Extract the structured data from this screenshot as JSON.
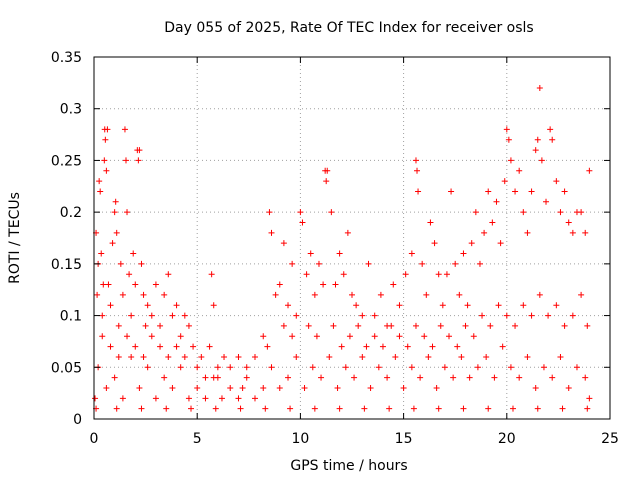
{
  "chart_data": {
    "type": "scatter",
    "title": "Day 055 of 2025, Rate Of TEC Index for receiver osls",
    "xlabel": "GPS time / hours",
    "ylabel": "ROTI / TECUs",
    "xlim": [
      0,
      25
    ],
    "ylim": [
      0,
      0.35
    ],
    "xticks": [
      0,
      5,
      10,
      15,
      20,
      25
    ],
    "yticks": [
      0,
      0.05,
      0.1,
      0.15,
      0.2,
      0.25,
      0.3,
      0.35
    ],
    "xtick_labels": [
      "0",
      "5",
      "10",
      "15",
      "20",
      "25"
    ],
    "ytick_labels": [
      "0",
      "0.05",
      "0.1",
      "0.15",
      "0.2",
      "0.25",
      "0.3",
      "0.35"
    ],
    "grid": true,
    "marker": "plus",
    "color": "#ff0000",
    "points": [
      [
        0.05,
        0.02
      ],
      [
        0.1,
        0.18
      ],
      [
        0.15,
        0.12
      ],
      [
        0.2,
        0.15
      ],
      [
        0.25,
        0.23
      ],
      [
        0.3,
        0.22
      ],
      [
        0.35,
        0.16
      ],
      [
        0.4,
        0.1
      ],
      [
        0.45,
        0.13
      ],
      [
        0.5,
        0.25
      ],
      [
        0.52,
        0.28
      ],
      [
        0.55,
        0.27
      ],
      [
        0.6,
        0.24
      ],
      [
        0.65,
        0.28
      ],
      [
        0.7,
        0.13
      ],
      [
        0.8,
        0.11
      ],
      [
        0.9,
        0.17
      ],
      [
        1.0,
        0.2
      ],
      [
        1.05,
        0.21
      ],
      [
        1.1,
        0.18
      ],
      [
        1.2,
        0.09
      ],
      [
        1.3,
        0.15
      ],
      [
        1.4,
        0.12
      ],
      [
        1.5,
        0.28
      ],
      [
        1.55,
        0.25
      ],
      [
        1.6,
        0.2
      ],
      [
        1.7,
        0.14
      ],
      [
        1.8,
        0.1
      ],
      [
        1.9,
        0.16
      ],
      [
        2.0,
        0.13
      ],
      [
        2.1,
        0.26
      ],
      [
        2.15,
        0.25
      ],
      [
        2.2,
        0.26
      ],
      [
        2.3,
        0.15
      ],
      [
        2.4,
        0.12
      ],
      [
        2.5,
        0.09
      ],
      [
        2.6,
        0.11
      ],
      [
        2.8,
        0.1
      ],
      [
        3.0,
        0.13
      ],
      [
        3.2,
        0.09
      ],
      [
        3.4,
        0.12
      ],
      [
        3.6,
        0.14
      ],
      [
        3.8,
        0.1
      ],
      [
        4.0,
        0.11
      ],
      [
        4.2,
        0.08
      ],
      [
        4.4,
        0.1
      ],
      [
        4.6,
        0.09
      ],
      [
        4.8,
        0.07
      ],
      [
        5.0,
        0.05
      ],
      [
        5.2,
        0.06
      ],
      [
        5.4,
        0.04
      ],
      [
        5.6,
        0.07
      ],
      [
        5.7,
        0.14
      ],
      [
        5.8,
        0.11
      ],
      [
        6.0,
        0.05
      ],
      [
        6.3,
        0.06
      ],
      [
        6.6,
        0.05
      ],
      [
        7.0,
        0.06
      ],
      [
        7.4,
        0.05
      ],
      [
        7.8,
        0.06
      ],
      [
        8.2,
        0.08
      ],
      [
        8.5,
        0.2
      ],
      [
        8.6,
        0.18
      ],
      [
        8.8,
        0.12
      ],
      [
        9.0,
        0.13
      ],
      [
        9.2,
        0.17
      ],
      [
        9.4,
        0.11
      ],
      [
        9.6,
        0.15
      ],
      [
        9.8,
        0.1
      ],
      [
        10.0,
        0.2
      ],
      [
        10.1,
        0.19
      ],
      [
        10.3,
        0.14
      ],
      [
        10.5,
        0.16
      ],
      [
        10.7,
        0.12
      ],
      [
        10.9,
        0.15
      ],
      [
        11.1,
        0.13
      ],
      [
        11.2,
        0.24
      ],
      [
        11.25,
        0.23
      ],
      [
        11.3,
        0.24
      ],
      [
        11.5,
        0.2
      ],
      [
        11.7,
        0.13
      ],
      [
        11.9,
        0.16
      ],
      [
        12.1,
        0.14
      ],
      [
        12.3,
        0.18
      ],
      [
        12.5,
        0.12
      ],
      [
        12.7,
        0.11
      ],
      [
        13.0,
        0.1
      ],
      [
        13.3,
        0.15
      ],
      [
        13.6,
        0.1
      ],
      [
        13.9,
        0.12
      ],
      [
        14.2,
        0.09
      ],
      [
        14.5,
        0.13
      ],
      [
        14.8,
        0.11
      ],
      [
        15.1,
        0.14
      ],
      [
        15.4,
        0.16
      ],
      [
        15.6,
        0.25
      ],
      [
        15.65,
        0.24
      ],
      [
        15.7,
        0.22
      ],
      [
        15.9,
        0.15
      ],
      [
        16.1,
        0.12
      ],
      [
        16.3,
        0.19
      ],
      [
        16.5,
        0.17
      ],
      [
        16.7,
        0.14
      ],
      [
        16.9,
        0.11
      ],
      [
        17.1,
        0.14
      ],
      [
        17.3,
        0.22
      ],
      [
        17.5,
        0.15
      ],
      [
        17.7,
        0.12
      ],
      [
        17.9,
        0.16
      ],
      [
        18.1,
        0.11
      ],
      [
        18.3,
        0.17
      ],
      [
        18.5,
        0.2
      ],
      [
        18.7,
        0.15
      ],
      [
        18.9,
        0.18
      ],
      [
        19.1,
        0.22
      ],
      [
        19.3,
        0.19
      ],
      [
        19.5,
        0.21
      ],
      [
        19.7,
        0.17
      ],
      [
        19.9,
        0.23
      ],
      [
        20.0,
        0.28
      ],
      [
        20.1,
        0.27
      ],
      [
        20.2,
        0.25
      ],
      [
        20.4,
        0.22
      ],
      [
        20.6,
        0.24
      ],
      [
        20.8,
        0.2
      ],
      [
        21.0,
        0.18
      ],
      [
        21.2,
        0.22
      ],
      [
        21.4,
        0.26
      ],
      [
        21.5,
        0.27
      ],
      [
        21.6,
        0.32
      ],
      [
        21.7,
        0.25
      ],
      [
        21.9,
        0.21
      ],
      [
        22.1,
        0.28
      ],
      [
        22.2,
        0.27
      ],
      [
        22.4,
        0.23
      ],
      [
        22.6,
        0.2
      ],
      [
        22.8,
        0.22
      ],
      [
        23.0,
        0.19
      ],
      [
        23.2,
        0.18
      ],
      [
        23.4,
        0.2
      ],
      [
        23.6,
        0.2
      ],
      [
        23.8,
        0.18
      ],
      [
        24.0,
        0.24
      ],
      [
        0.2,
        0.05
      ],
      [
        0.6,
        0.03
      ],
      [
        1.0,
        0.04
      ],
      [
        1.4,
        0.02
      ],
      [
        1.8,
        0.06
      ],
      [
        2.2,
        0.03
      ],
      [
        2.6,
        0.05
      ],
      [
        3.0,
        0.02
      ],
      [
        3.4,
        0.04
      ],
      [
        3.8,
        0.03
      ],
      [
        4.2,
        0.05
      ],
      [
        4.6,
        0.02
      ],
      [
        5.0,
        0.03
      ],
      [
        5.4,
        0.02
      ],
      [
        5.8,
        0.04
      ],
      [
        6.2,
        0.02
      ],
      [
        6.6,
        0.03
      ],
      [
        7.0,
        0.02
      ],
      [
        7.4,
        0.04
      ],
      [
        7.8,
        0.02
      ],
      [
        8.2,
        0.03
      ],
      [
        8.6,
        0.05
      ],
      [
        9.0,
        0.03
      ],
      [
        9.4,
        0.04
      ],
      [
        9.8,
        0.06
      ],
      [
        10.2,
        0.03
      ],
      [
        10.6,
        0.05
      ],
      [
        11.0,
        0.04
      ],
      [
        11.4,
        0.06
      ],
      [
        11.8,
        0.03
      ],
      [
        12.2,
        0.05
      ],
      [
        12.6,
        0.04
      ],
      [
        13.0,
        0.06
      ],
      [
        13.4,
        0.03
      ],
      [
        13.8,
        0.05
      ],
      [
        14.2,
        0.04
      ],
      [
        14.6,
        0.06
      ],
      [
        15.0,
        0.03
      ],
      [
        15.4,
        0.05
      ],
      [
        15.8,
        0.04
      ],
      [
        16.2,
        0.06
      ],
      [
        16.6,
        0.03
      ],
      [
        17.0,
        0.05
      ],
      [
        17.4,
        0.04
      ],
      [
        17.8,
        0.06
      ],
      [
        18.2,
        0.04
      ],
      [
        18.6,
        0.05
      ],
      [
        19.0,
        0.06
      ],
      [
        19.4,
        0.04
      ],
      [
        19.8,
        0.07
      ],
      [
        20.2,
        0.05
      ],
      [
        20.6,
        0.04
      ],
      [
        21.0,
        0.06
      ],
      [
        21.4,
        0.03
      ],
      [
        21.8,
        0.05
      ],
      [
        22.2,
        0.04
      ],
      [
        22.6,
        0.06
      ],
      [
        23.0,
        0.03
      ],
      [
        23.4,
        0.05
      ],
      [
        23.8,
        0.04
      ],
      [
        24.0,
        0.02
      ],
      [
        0.4,
        0.08
      ],
      [
        0.8,
        0.07
      ],
      [
        1.2,
        0.06
      ],
      [
        1.6,
        0.08
      ],
      [
        2.0,
        0.07
      ],
      [
        2.4,
        0.06
      ],
      [
        2.8,
        0.08
      ],
      [
        3.2,
        0.07
      ],
      [
        3.6,
        0.06
      ],
      [
        4.0,
        0.07
      ],
      [
        4.4,
        0.06
      ],
      [
        6.0,
        0.04
      ],
      [
        7.2,
        0.03
      ],
      [
        8.4,
        0.07
      ],
      [
        9.2,
        0.09
      ],
      [
        9.6,
        0.08
      ],
      [
        10.4,
        0.09
      ],
      [
        10.8,
        0.08
      ],
      [
        11.6,
        0.09
      ],
      [
        12.0,
        0.07
      ],
      [
        12.4,
        0.08
      ],
      [
        12.8,
        0.09
      ],
      [
        13.2,
        0.07
      ],
      [
        13.6,
        0.08
      ],
      [
        14.0,
        0.07
      ],
      [
        14.4,
        0.09
      ],
      [
        14.8,
        0.08
      ],
      [
        15.2,
        0.07
      ],
      [
        15.6,
        0.09
      ],
      [
        16.0,
        0.08
      ],
      [
        16.4,
        0.07
      ],
      [
        16.8,
        0.09
      ],
      [
        17.2,
        0.08
      ],
      [
        17.6,
        0.07
      ],
      [
        18.0,
        0.09
      ],
      [
        18.4,
        0.08
      ],
      [
        18.8,
        0.1
      ],
      [
        19.2,
        0.09
      ],
      [
        19.6,
        0.11
      ],
      [
        20.0,
        0.1
      ],
      [
        20.4,
        0.09
      ],
      [
        20.8,
        0.11
      ],
      [
        21.2,
        0.1
      ],
      [
        21.6,
        0.12
      ],
      [
        22.0,
        0.1
      ],
      [
        22.4,
        0.11
      ],
      [
        22.8,
        0.09
      ],
      [
        23.2,
        0.1
      ],
      [
        23.6,
        0.12
      ],
      [
        23.9,
        0.09
      ],
      [
        0.1,
        0.01
      ],
      [
        1.1,
        0.01
      ],
      [
        2.3,
        0.01
      ],
      [
        3.5,
        0.01
      ],
      [
        4.7,
        0.01
      ],
      [
        5.9,
        0.01
      ],
      [
        7.1,
        0.01
      ],
      [
        8.3,
        0.01
      ],
      [
        9.5,
        0.01
      ],
      [
        10.7,
        0.01
      ],
      [
        11.9,
        0.01
      ],
      [
        13.1,
        0.01
      ],
      [
        14.3,
        0.01
      ],
      [
        15.5,
        0.01
      ],
      [
        16.7,
        0.01
      ],
      [
        17.9,
        0.01
      ],
      [
        19.1,
        0.01
      ],
      [
        20.3,
        0.01
      ],
      [
        21.5,
        0.01
      ],
      [
        22.7,
        0.01
      ],
      [
        23.9,
        0.01
      ]
    ]
  }
}
